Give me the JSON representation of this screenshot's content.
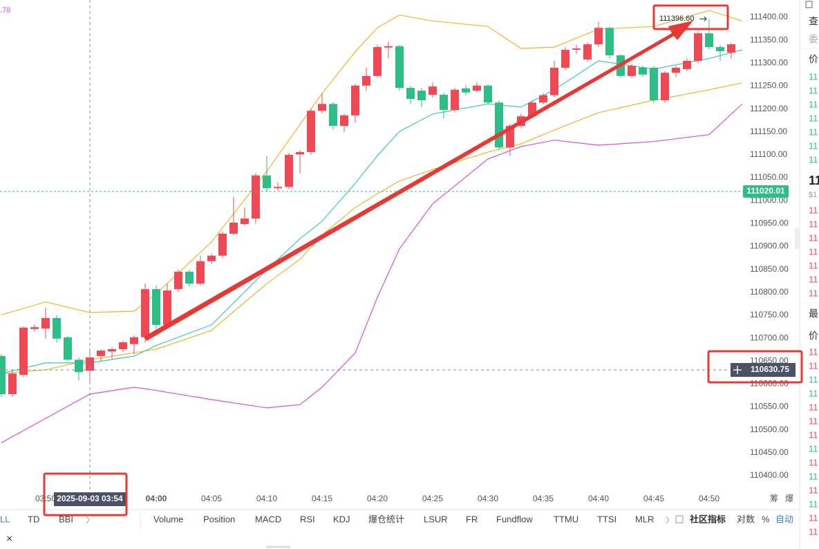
{
  "top_left_label": ".78",
  "chart_data": {
    "type": "candlestick",
    "colors": {
      "up": "#ef4955",
      "down": "#2ebd85"
    },
    "xlim": [
      -14.125,
      53.25
    ],
    "ylim": [
      110400,
      111400
    ],
    "xticks": [
      {
        "value": -10,
        "label": "03:50"
      },
      {
        "value": 0,
        "label": "04:00"
      },
      {
        "value": 5,
        "label": "04:05"
      },
      {
        "value": 10,
        "label": "04:10"
      },
      {
        "value": 15,
        "label": "04:15"
      },
      {
        "value": 20,
        "label": "04:20"
      },
      {
        "value": 25,
        "label": "04:25"
      },
      {
        "value": 30,
        "label": "04:30"
      },
      {
        "value": 35,
        "label": "04:35"
      },
      {
        "value": 40,
        "label": "04:40"
      },
      {
        "value": 45,
        "label": "04:45"
      },
      {
        "value": 50,
        "label": "04:50"
      }
    ],
    "yticks": [
      {
        "value": 110400,
        "label": "110400.00"
      },
      {
        "value": 110450,
        "label": "110450.00"
      },
      {
        "value": 110500,
        "label": "110500.00"
      },
      {
        "value": 110550,
        "label": "110550.00"
      },
      {
        "value": 110600,
        "label": "110600.00"
      },
      {
        "value": 110650,
        "label": "110650.00"
      },
      {
        "value": 110700,
        "label": "110700.00"
      },
      {
        "value": 110750,
        "label": "110750.00"
      },
      {
        "value": 110800,
        "label": "110800.00"
      },
      {
        "value": 110850,
        "label": "110850.00"
      },
      {
        "value": 110900,
        "label": "110900.00"
      },
      {
        "value": 110950,
        "label": "110950.00"
      },
      {
        "value": 111000,
        "label": "111000.00"
      },
      {
        "value": 111050,
        "label": "111050.00"
      },
      {
        "value": 111100,
        "label": "111100.00"
      },
      {
        "value": 111150,
        "label": "111150.00"
      },
      {
        "value": 111200,
        "label": "111200.00"
      },
      {
        "value": 111250,
        "label": "111250.00"
      },
      {
        "value": 111300,
        "label": "111300.00"
      },
      {
        "value": 111350,
        "label": "111350.00"
      },
      {
        "value": 111400,
        "label": "111400.00"
      }
    ],
    "x": [
      -14,
      -13,
      -12,
      -11,
      -10,
      -9,
      -8,
      -7,
      -6,
      -5,
      -4,
      -3,
      -2,
      -1,
      0,
      1,
      2,
      3,
      4,
      5,
      6,
      7,
      8,
      9,
      10,
      11,
      12,
      13,
      14,
      15,
      16,
      17,
      18,
      19,
      20,
      21,
      22,
      23,
      24,
      25,
      26,
      27,
      28,
      29,
      30,
      31,
      32,
      33,
      34,
      35,
      36,
      37,
      38,
      39,
      40,
      41,
      42,
      43,
      44,
      45,
      46,
      47,
      48,
      49,
      50,
      51,
      52
    ],
    "candles": [
      [
        110661,
        110665,
        110572,
        110578
      ],
      [
        110578,
        110628,
        110572,
        110623
      ],
      [
        110620,
        110726,
        110615,
        110723
      ],
      [
        110720,
        110730,
        110715,
        110724
      ],
      [
        110721,
        110767,
        110699,
        110744
      ],
      [
        110744,
        110750,
        110690,
        110699
      ],
      [
        110702,
        110705,
        110650,
        110653
      ],
      [
        110653,
        110658,
        110608,
        110626
      ],
      [
        110629,
        110676,
        110605,
        110658
      ],
      [
        110661,
        110676,
        110650,
        110673
      ],
      [
        110671,
        110680,
        110655,
        110676
      ],
      [
        110676,
        110694,
        110670,
        110691
      ],
      [
        110687,
        110706,
        110665,
        110702
      ],
      [
        110702,
        110819,
        110690,
        110807
      ],
      [
        110807,
        110815,
        110720,
        110729
      ],
      [
        110729,
        110819,
        110722,
        110804
      ],
      [
        110807,
        110850,
        110800,
        110845
      ],
      [
        110845,
        110850,
        110812,
        110819
      ],
      [
        110819,
        110880,
        110815,
        110868
      ],
      [
        110868,
        110885,
        110862,
        110880
      ],
      [
        110880,
        110932,
        110875,
        110928
      ],
      [
        110928,
        111008,
        110925,
        110952
      ],
      [
        110949,
        110985,
        110945,
        110961
      ],
      [
        110961,
        111060,
        110950,
        111055
      ],
      [
        111055,
        111098,
        111020,
        111027
      ],
      [
        111027,
        111040,
        111022,
        111030
      ],
      [
        111030,
        111104,
        111025,
        111100
      ],
      [
        111101,
        111110,
        111060,
        111106
      ],
      [
        111106,
        111200,
        111100,
        111196
      ],
      [
        111196,
        111234,
        111190,
        111211
      ],
      [
        111211,
        111215,
        111155,
        111163
      ],
      [
        111163,
        111190,
        111150,
        111186
      ],
      [
        111186,
        111255,
        111170,
        111251
      ],
      [
        111251,
        111290,
        111240,
        111272
      ],
      [
        111272,
        111340,
        111268,
        111335
      ],
      [
        111334,
        111347,
        111310,
        111337
      ],
      [
        111337,
        111340,
        111240,
        111246
      ],
      [
        111246,
        111250,
        111210,
        111222
      ],
      [
        111240,
        111246,
        111204,
        111219
      ],
      [
        111231,
        111258,
        111225,
        111249
      ],
      [
        111231,
        111236,
        111180,
        111198
      ],
      [
        111198,
        111246,
        111192,
        111242
      ],
      [
        111245,
        111252,
        111230,
        111236
      ],
      [
        111240,
        111258,
        111236,
        111251
      ],
      [
        111251,
        111254,
        111210,
        111214
      ],
      [
        111214,
        111218,
        111110,
        111116
      ],
      [
        111116,
        111168,
        111098,
        111163
      ],
      [
        111163,
        111190,
        111158,
        111184
      ],
      [
        111184,
        111219,
        111180,
        111214
      ],
      [
        111214,
        111234,
        111210,
        111230
      ],
      [
        111230,
        111305,
        111225,
        111290
      ],
      [
        111290,
        111335,
        111285,
        111329
      ],
      [
        111329,
        111340,
        111320,
        111332
      ],
      [
        111308,
        111345,
        111303,
        111341
      ],
      [
        111341,
        111389,
        111335,
        111377
      ],
      [
        111377,
        111380,
        111310,
        111317
      ],
      [
        111317,
        111320,
        111268,
        111272
      ],
      [
        111272,
        111298,
        111268,
        111294
      ],
      [
        111290,
        111294,
        111270,
        111275
      ],
      [
        111290,
        111294,
        111214,
        111219
      ],
      [
        111219,
        111283,
        111214,
        111279
      ],
      [
        111279,
        111294,
        111270,
        111290
      ],
      [
        111287,
        111310,
        111282,
        111305
      ],
      [
        111305,
        111370,
        111300,
        111365
      ],
      [
        111365,
        111396.6,
        111330,
        111335
      ],
      [
        111335,
        111340,
        111305,
        111326
      ],
      [
        111323,
        111345,
        111310,
        111341
      ]
    ],
    "lines": [
      {
        "color": "#f0b429",
        "x": [
          -14,
          -10,
          -6,
          -2,
          0,
          5,
          10,
          13,
          15,
          18,
          20,
          22,
          25,
          30,
          33,
          36,
          40,
          45,
          50,
          53
        ],
        "values": [
          110751,
          110779,
          110756,
          110759,
          110797,
          110910,
          111064,
          111166,
          111234,
          111325,
          111377,
          111405,
          111392,
          111380,
          111332,
          111335,
          111374,
          111380,
          111415,
          111392
        ]
      },
      {
        "color": "#f0b429",
        "x": [
          -14,
          -10,
          -6,
          -2,
          0,
          5,
          10,
          13,
          15,
          18,
          20,
          22,
          25,
          30,
          33,
          36,
          40,
          45,
          50,
          53
        ],
        "values": [
          110623,
          110631,
          110653,
          110668,
          110676,
          110717,
          110819,
          110872,
          110925,
          110985,
          111015,
          111043,
          111068,
          111106,
          111124,
          111154,
          111192,
          111219,
          111242,
          111257
        ]
      },
      {
        "color": "#3cc8b4",
        "x": [
          -14,
          -10,
          -6,
          -2,
          0,
          5,
          10,
          13,
          15,
          18,
          20,
          22,
          25,
          30,
          33,
          36,
          40,
          45,
          50,
          53
        ],
        "values": [
          110623,
          110646,
          110646,
          110661,
          110684,
          110729,
          110849,
          110917,
          110955,
          111038,
          111098,
          111151,
          111189,
          111211,
          111204,
          111242,
          111305,
          111287,
          111310,
          111329
        ]
      },
      {
        "color": "#d94fd6",
        "x": [
          -14,
          -10,
          -6,
          -2,
          0,
          5,
          10,
          13,
          15,
          18,
          20,
          22,
          25,
          30,
          33,
          36,
          40,
          45,
          50,
          53
        ],
        "values": [
          110472,
          110525,
          110578,
          110593,
          110586,
          110566,
          110548,
          110555,
          110593,
          110668,
          110789,
          110895,
          110993,
          111091,
          111118,
          111132,
          111121,
          111129,
          111144,
          111211
        ]
      }
    ],
    "last_price": 111020.01,
    "crosshair": {
      "x": -6,
      "x_label": "2025-09-03 03:54",
      "y": 110630.75
    },
    "max_marker": {
      "value": 111396.6,
      "label": "111396.60"
    }
  },
  "axis_side_labels": [
    "筹",
    "爆"
  ],
  "indicator_tabs_left": [
    "LL",
    "TD",
    "BBI"
  ],
  "indicator_tabs": [
    "Volume",
    "Position",
    "MACD",
    "RSI",
    "KDJ",
    "爆仓统计",
    "LSUR",
    "FR",
    "Fundflow",
    "TTMU",
    "TTSI",
    "MLR"
  ],
  "community": "社区指标",
  "log": "对数",
  "percent": "%",
  "auto": "自动",
  "close": "×",
  "sidebar": {
    "tabs": [
      "查",
      "委"
    ],
    "price_header": "价",
    "asks": [
      "11",
      "11",
      "11",
      "11",
      "11",
      "11",
      "11"
    ],
    "last": "11",
    "last_usd": "$1",
    "bids": [
      "11",
      "11",
      "11",
      "11",
      "11",
      "11",
      "11"
    ],
    "recent_header": "最",
    "recent_price_header": "价",
    "trades": [
      "11",
      "11",
      "11",
      "11",
      "11",
      "11",
      "11",
      "11",
      "11",
      "11",
      "11",
      "11",
      "11",
      "11"
    ],
    "trade_colors": [
      "#ef4955",
      "#ef4955",
      "#2ebd85",
      "#2ebd85",
      "#ef4955",
      "#ef4955",
      "#ef4955",
      "#2ebd85",
      "#ef4955",
      "#2ebd85",
      "#ef4955",
      "#2ebd85",
      "#ef4955",
      "#ef4955"
    ]
  }
}
